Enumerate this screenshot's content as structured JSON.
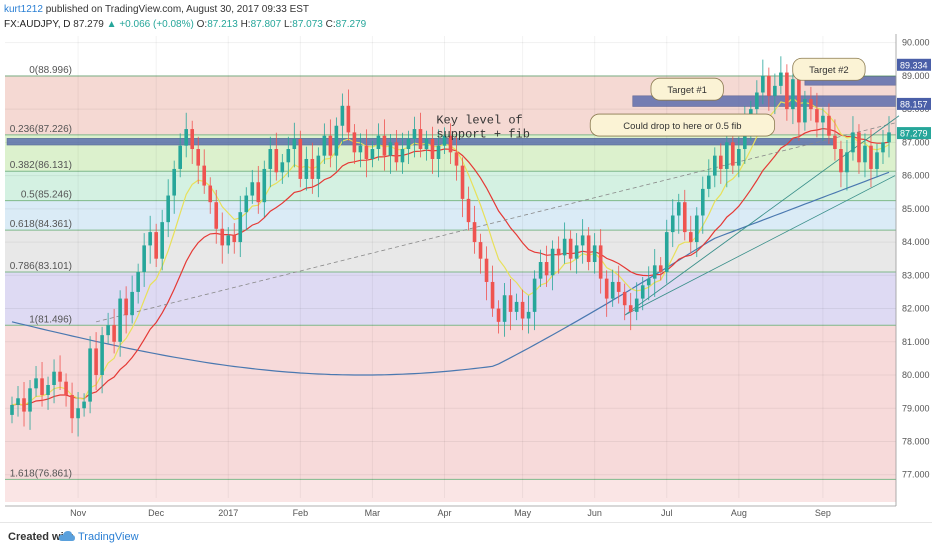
{
  "header": {
    "author": "kurt1212",
    "published": "published on TradingView.com, August 30, 2017 09:33 EST",
    "symbol": "FX:AUDJPY, D",
    "last": "87.279",
    "change": "+0.066 (+0.08%)",
    "open_label": "O:",
    "open": "87.213",
    "high_label": "H:",
    "high": "87.807",
    "low_label": "L:",
    "low": "87.073",
    "close_label": "C:",
    "close": "87.279"
  },
  "footer": {
    "created_with": "Created with",
    "brand": "TradingView"
  },
  "colors": {
    "up": "#26a69a",
    "down": "#ef5350",
    "ema_fast": "#e8e05a",
    "ema_mid": "#e53935",
    "ema_slow": "#4a78b0",
    "fib_line": "#4f9a5a",
    "zone": "#4a5fa8"
  },
  "chart_data": {
    "type": "line",
    "subtype": "candlestick",
    "title": "",
    "x_ticks": [
      "Nov",
      "Dec",
      "2017",
      "Feb",
      "Mar",
      "Apr",
      "May",
      "Jun",
      "Jul",
      "Aug",
      "Sep"
    ],
    "y_ticks": [
      "90.000",
      "89.000",
      "88.000",
      "87.000",
      "86.000",
      "85.000",
      "84.000",
      "83.000",
      "82.000",
      "81.000",
      "80.000",
      "79.000",
      "78.000",
      "77.000"
    ],
    "ylim": [
      76.3,
      90.2
    ],
    "fib_levels": [
      {
        "label": "0(88.996)",
        "value": 88.996,
        "fill": "#f6d3d3"
      },
      {
        "label": "0.236(87.226)",
        "value": 87.226,
        "fill": "#eef3c8"
      },
      {
        "label": "0.382(86.131)",
        "value": 86.131,
        "fill": "#d6efc4"
      },
      {
        "label": "0.5(85.246)",
        "value": 85.246,
        "fill": "#cdeedd"
      },
      {
        "label": "0.618(84.361)",
        "value": 84.361,
        "fill": "#d3e7f4"
      },
      {
        "label": "0.786(83.101)",
        "value": 83.101,
        "fill": "#e4e4e4"
      },
      {
        "label": "1(81.496)",
        "value": 81.496,
        "fill": "#d8d4f1"
      },
      {
        "label": "1.618(76.861)",
        "value": 76.861,
        "fill": "#f6d3d3"
      }
    ],
    "price_labels": [
      {
        "text": "89.334",
        "value": 89.334,
        "color": "#4a5fa8"
      },
      {
        "text": "88.157",
        "value": 88.157,
        "color": "#4a5fa8"
      },
      {
        "text": "87.279",
        "value": 87.279,
        "color": "#26a69a"
      }
    ],
    "zones": [
      {
        "name": "key-level",
        "x0": 0.1,
        "x1": 41.0,
        "y0": 86.92,
        "y1": 87.12
      },
      {
        "name": "target-1",
        "x0": 31.0,
        "x1": 44.0,
        "y0": 88.08,
        "y1": 88.4
      },
      {
        "name": "target-2",
        "x0": 39.5,
        "x1": 44.0,
        "y0": 88.72,
        "y1": 88.98
      }
    ],
    "annotations": [
      {
        "name": "key-level-note",
        "text": "Key level of support + fib",
        "x": 21.3,
        "y": 87.2,
        "kind": "text"
      },
      {
        "name": "drop-note",
        "text": "Could drop to here or 0.5 fib",
        "x": 28.9,
        "y": 87.52,
        "kind": "bubble"
      },
      {
        "name": "target-1-note",
        "text": "Target #1",
        "x": 31.9,
        "y": 88.6,
        "kind": "bubble"
      },
      {
        "name": "target-2-note",
        "text": "Target #2",
        "x": 38.9,
        "y": 89.2,
        "kind": "bubble"
      }
    ],
    "close": [
      79.1,
      79.3,
      78.9,
      79.6,
      79.9,
      79.4,
      79.7,
      80.1,
      79.8,
      79.4,
      78.7,
      79.0,
      79.2,
      80.8,
      80.0,
      81.2,
      81.5,
      81.0,
      82.3,
      81.8,
      82.5,
      83.1,
      83.9,
      84.3,
      83.5,
      84.6,
      85.4,
      86.2,
      86.9,
      87.4,
      86.8,
      86.3,
      85.7,
      85.2,
      84.4,
      83.9,
      84.2,
      84.0,
      84.9,
      85.4,
      85.8,
      85.2,
      86.2,
      86.8,
      86.1,
      86.4,
      86.8,
      87.1,
      85.9,
      86.5,
      85.9,
      86.6,
      87.2,
      86.6,
      87.5,
      88.1,
      87.3,
      86.7,
      86.9,
      86.5,
      86.8,
      87.2,
      86.6,
      87.0,
      86.4,
      86.8,
      87.1,
      87.4,
      86.8,
      87.1,
      86.5,
      86.9,
      87.2,
      86.7,
      86.3,
      85.3,
      84.6,
      84.0,
      83.5,
      82.8,
      82.0,
      81.6,
      82.4,
      81.9,
      82.2,
      81.7,
      81.9,
      82.9,
      83.4,
      83.0,
      83.8,
      83.6,
      84.1,
      83.5,
      83.9,
      84.2,
      83.4,
      83.9,
      82.9,
      82.3,
      82.8,
      82.5,
      82.1,
      81.9,
      82.3,
      82.7,
      82.9,
      83.3,
      83.1,
      84.3,
      84.8,
      85.2,
      84.3,
      84.0,
      84.8,
      85.6,
      86.0,
      86.6,
      86.2,
      87.0,
      86.3,
      86.8,
      87.6,
      88.0,
      88.5,
      89.0,
      88.4,
      88.7,
      89.1,
      88.0,
      88.9,
      87.6,
      88.3,
      88.0,
      87.6,
      87.8,
      87.2,
      86.8,
      86.1,
      86.7,
      87.3,
      86.4,
      86.9,
      86.2,
      86.7,
      87.0,
      87.3
    ],
    "open": [
      78.8,
      79.1,
      79.3,
      78.9,
      79.6,
      79.9,
      79.4,
      79.7,
      80.1,
      79.8,
      79.4,
      78.7,
      79.0,
      79.2,
      80.8,
      80.0,
      81.2,
      81.5,
      81.0,
      82.3,
      81.8,
      82.5,
      83.1,
      83.9,
      84.3,
      83.5,
      84.6,
      85.4,
      86.2,
      86.9,
      87.4,
      86.8,
      86.3,
      85.7,
      85.2,
      84.4,
      83.9,
      84.2,
      84.0,
      84.9,
      85.4,
      85.8,
      85.2,
      86.2,
      86.8,
      86.1,
      86.4,
      86.8,
      87.1,
      85.9,
      86.5,
      85.9,
      86.6,
      87.2,
      86.6,
      87.5,
      88.1,
      87.3,
      86.7,
      86.9,
      86.5,
      86.8,
      87.2,
      86.6,
      87.0,
      86.4,
      86.8,
      87.1,
      87.4,
      86.8,
      87.1,
      86.5,
      86.9,
      87.2,
      86.7,
      86.3,
      85.3,
      84.6,
      84.0,
      83.5,
      82.8,
      82.0,
      81.6,
      82.4,
      81.9,
      82.2,
      81.7,
      81.9,
      82.9,
      83.4,
      83.0,
      83.8,
      83.6,
      84.1,
      83.5,
      83.9,
      84.2,
      83.4,
      83.9,
      82.9,
      82.3,
      82.8,
      82.5,
      82.1,
      81.9,
      82.3,
      82.7,
      82.9,
      83.3,
      83.1,
      84.3,
      84.8,
      85.2,
      84.3,
      84.0,
      84.8,
      85.6,
      86.0,
      86.6,
      86.2,
      87.0,
      86.3,
      86.8,
      87.6,
      88.0,
      88.5,
      89.0,
      88.4,
      88.7,
      89.1,
      88.0,
      88.9,
      87.6,
      88.3,
      88.0,
      87.6,
      87.8,
      87.2,
      86.8,
      86.1,
      86.7,
      87.3,
      86.4,
      86.9,
      86.2,
      86.7,
      87.0
    ]
  }
}
